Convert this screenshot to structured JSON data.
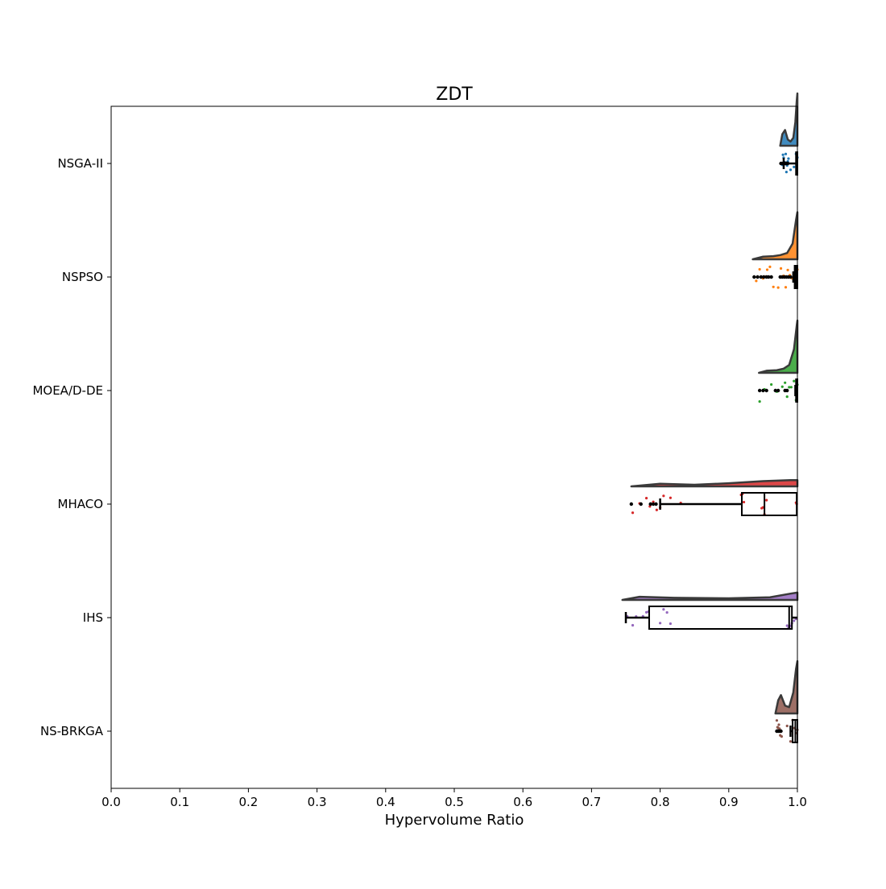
{
  "chart_data": {
    "type": "raincloud",
    "title": "ZDT",
    "xlabel": "Hypervolume Ratio",
    "ylabel": "",
    "xlim": [
      0.0,
      1.0
    ],
    "xticks": [
      "0.0",
      "0.1",
      "0.2",
      "0.3",
      "0.4",
      "0.5",
      "0.6",
      "0.7",
      "0.8",
      "0.9",
      "1.0"
    ],
    "categories": [
      "NSGA-II",
      "NSPSO",
      "MOEA/D-DE",
      "MHACO",
      "IHS",
      "NS-BRKGA"
    ],
    "series": [
      {
        "name": "NSGA-II",
        "color": "#1f77b4",
        "box": {
          "min": 0.98,
          "q1": 0.998,
          "median": 0.999,
          "q3": 1.0,
          "max": 1.0
        },
        "outliers": [
          0.976,
          0.978,
          0.98,
          0.981,
          0.982,
          0.983,
          0.984,
          0.985,
          0.986
        ],
        "points": [
          0.976,
          0.978,
          0.979,
          0.98,
          0.981,
          0.982,
          0.983,
          0.984,
          0.985,
          0.986,
          0.987,
          0.99,
          0.995,
          0.998,
          0.999,
          1.0
        ],
        "density": [
          [
            0.975,
            0.0
          ],
          [
            0.978,
            0.22
          ],
          [
            0.982,
            0.3
          ],
          [
            0.986,
            0.12
          ],
          [
            0.99,
            0.08
          ],
          [
            0.994,
            0.15
          ],
          [
            0.997,
            0.45
          ],
          [
            0.999,
            0.85
          ],
          [
            1.0,
            1.0
          ]
        ]
      },
      {
        "name": "NSPSO",
        "color": "#ff7f0e",
        "box": {
          "min": 0.994,
          "q1": 0.996,
          "median": 0.998,
          "q3": 1.0,
          "max": 1.0
        },
        "outliers": [
          0.937,
          0.942,
          0.947,
          0.951,
          0.955,
          0.958,
          0.962,
          0.975,
          0.978,
          0.981,
          0.984,
          0.987,
          0.99
        ],
        "points": [
          0.94,
          0.945,
          0.95,
          0.953,
          0.956,
          0.96,
          0.965,
          0.972,
          0.976,
          0.98,
          0.983,
          0.986,
          0.989,
          0.992,
          0.995,
          0.998,
          1.0
        ],
        "density": [
          [
            0.935,
            0.0
          ],
          [
            0.95,
            0.05
          ],
          [
            0.965,
            0.06
          ],
          [
            0.975,
            0.08
          ],
          [
            0.985,
            0.12
          ],
          [
            0.993,
            0.3
          ],
          [
            0.998,
            0.75
          ],
          [
            1.0,
            0.9
          ]
        ]
      },
      {
        "name": "MOEA/D-DE",
        "color": "#2ca02c",
        "box": {
          "min": 0.997,
          "q1": 0.998,
          "median": 0.999,
          "q3": 1.0,
          "max": 1.0
        },
        "outliers": [
          0.945,
          0.95,
          0.955,
          0.968,
          0.972,
          0.982,
          0.985
        ],
        "points": [
          0.945,
          0.952,
          0.962,
          0.97,
          0.978,
          0.982,
          0.985,
          0.988,
          0.991,
          0.995,
          0.998,
          1.0
        ],
        "density": [
          [
            0.944,
            0.0
          ],
          [
            0.955,
            0.04
          ],
          [
            0.97,
            0.05
          ],
          [
            0.98,
            0.08
          ],
          [
            0.988,
            0.15
          ],
          [
            0.995,
            0.45
          ],
          [
            0.999,
            0.9
          ],
          [
            1.0,
            1.0
          ]
        ]
      },
      {
        "name": "MHACO",
        "color": "#d62728",
        "box": {
          "min": 0.8,
          "q1": 0.919,
          "median": 0.952,
          "q3": 0.999,
          "max": 1.0
        },
        "outliers": [
          0.758,
          0.772,
          0.786,
          0.79,
          0.794
        ],
        "points": [
          0.76,
          0.77,
          0.78,
          0.785,
          0.79,
          0.795,
          0.8,
          0.805,
          0.815,
          0.83,
          0.918,
          0.92,
          0.922,
          0.948,
          0.95,
          0.952,
          0.955,
          0.998,
          0.999
        ],
        "density": [
          [
            0.758,
            0.0
          ],
          [
            0.8,
            0.05
          ],
          [
            0.85,
            0.03
          ],
          [
            0.9,
            0.06
          ],
          [
            0.95,
            0.1
          ],
          [
            0.99,
            0.12
          ],
          [
            1.0,
            0.12
          ]
        ]
      },
      {
        "name": "IHS",
        "color": "#9467bd",
        "box": {
          "min": 0.75,
          "q1": 0.784,
          "median": 0.988,
          "q3": 0.992,
          "max": 1.0
        },
        "outliers": [],
        "points": [
          0.752,
          0.76,
          0.765,
          0.775,
          0.78,
          0.783,
          0.8,
          0.805,
          0.81,
          0.815,
          0.985,
          0.987,
          0.988,
          0.99,
          0.992,
          0.995,
          0.998
        ],
        "density": [
          [
            0.745,
            0.0
          ],
          [
            0.77,
            0.06
          ],
          [
            0.82,
            0.04
          ],
          [
            0.9,
            0.03
          ],
          [
            0.96,
            0.05
          ],
          [
            0.99,
            0.12
          ],
          [
            1.0,
            0.14
          ]
        ]
      },
      {
        "name": "NS-BRKGA",
        "color": "#8c564b",
        "box": {
          "min": 0.99,
          "q1": 0.993,
          "median": 0.997,
          "q3": 1.0,
          "max": 1.0
        },
        "outliers": [
          0.97,
          0.972,
          0.974,
          0.976
        ],
        "points": [
          0.97,
          0.971,
          0.972,
          0.973,
          0.974,
          0.975,
          0.977,
          0.985,
          0.99,
          0.993,
          0.996,
          0.998,
          1.0
        ],
        "density": [
          [
            0.968,
            0.0
          ],
          [
            0.972,
            0.25
          ],
          [
            0.976,
            0.35
          ],
          [
            0.982,
            0.15
          ],
          [
            0.988,
            0.12
          ],
          [
            0.994,
            0.4
          ],
          [
            0.998,
            0.85
          ],
          [
            1.0,
            1.0
          ]
        ]
      }
    ]
  }
}
